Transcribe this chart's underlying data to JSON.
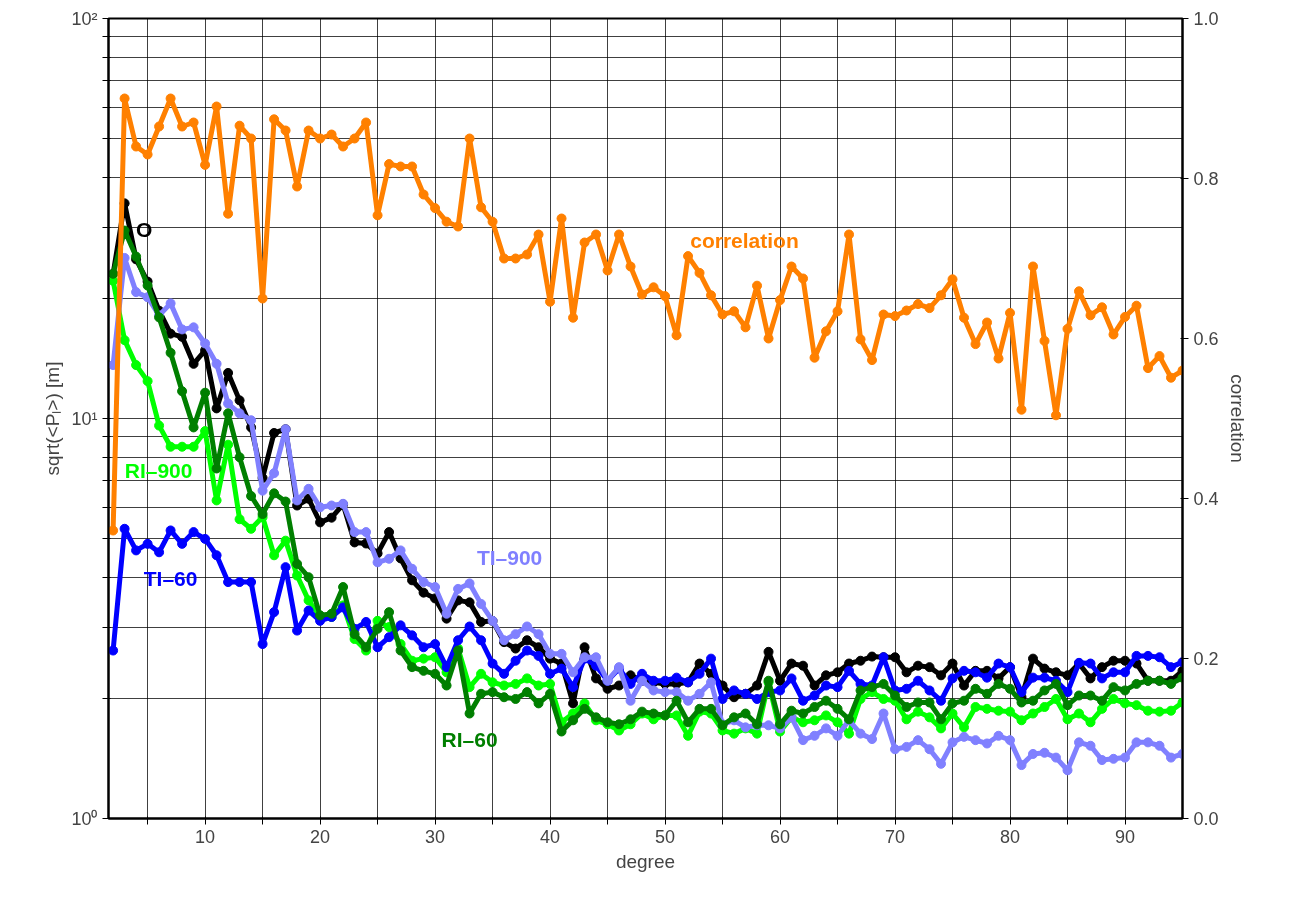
{
  "chart_data": {
    "type": "line",
    "xlabel": "degree",
    "ylabel": "sqrt(<Pₗ>) [m]",
    "y2label": "correlation",
    "x": [
      2,
      3,
      4,
      5,
      6,
      7,
      8,
      9,
      10,
      11,
      12,
      13,
      14,
      15,
      16,
      17,
      18,
      19,
      20,
      21,
      22,
      23,
      24,
      25,
      26,
      27,
      28,
      29,
      30,
      31,
      32,
      33,
      34,
      35,
      36,
      37,
      38,
      39,
      40,
      41,
      42,
      43,
      44,
      45,
      46,
      47,
      48,
      49,
      50,
      51,
      52,
      53,
      54,
      55,
      56,
      57,
      58,
      59,
      60,
      61,
      62,
      63,
      64,
      65,
      66,
      67,
      68,
      69,
      70,
      71,
      72,
      73,
      74,
      75,
      76,
      77,
      78,
      79,
      80,
      81,
      82,
      83,
      84,
      85,
      86,
      87,
      88,
      89,
      90,
      91,
      92,
      93,
      94,
      95
    ],
    "xlim": [
      1.6,
      95
    ],
    "xticks": [
      {
        "value": 5,
        "label": null
      },
      10,
      {
        "value": 15,
        "label": null
      },
      20,
      {
        "value": 25,
        "label": null
      },
      30,
      {
        "value": 35,
        "label": null
      },
      40,
      {
        "value": 45,
        "label": null
      },
      50,
      {
        "value": 55,
        "label": null
      },
      60,
      {
        "value": 65,
        "label": null
      },
      70,
      {
        "value": 75,
        "label": null
      },
      80,
      {
        "value": 85,
        "label": null
      },
      90
    ],
    "ylim": [
      1,
      100
    ],
    "yticks": [
      {
        "value": 1,
        "label": "10⁰"
      },
      {
        "value": 2,
        "label": null
      },
      {
        "value": 3,
        "label": null
      },
      {
        "value": 4,
        "label": null
      },
      {
        "value": 5,
        "label": null
      },
      {
        "value": 6,
        "label": null
      },
      {
        "value": 7,
        "label": null
      },
      {
        "value": 8,
        "label": null
      },
      {
        "value": 9,
        "label": null
      },
      {
        "value": 10,
        "label": "10¹"
      },
      {
        "value": 20,
        "label": null
      },
      {
        "value": 30,
        "label": null
      },
      {
        "value": 40,
        "label": null
      },
      {
        "value": 50,
        "label": null
      },
      {
        "value": 60,
        "label": null
      },
      {
        "value": 70,
        "label": null
      },
      {
        "value": 80,
        "label": null
      },
      {
        "value": 90,
        "label": null
      },
      {
        "value": 100,
        "label": "10²"
      }
    ],
    "y2lim": [
      0,
      1
    ],
    "y2ticks": [
      {
        "value": 0,
        "label": "0.0"
      },
      {
        "value": 0.2,
        "label": "0.2"
      },
      {
        "value": 0.4,
        "label": "0.4"
      },
      {
        "value": 0.6,
        "label": "0.6"
      },
      {
        "value": 0.8,
        "label": "0.8"
      },
      {
        "value": 1,
        "label": "1.0"
      }
    ],
    "log": "y",
    "grid": true,
    "marker": "circle",
    "line_style": "solid",
    "series": [
      {
        "color": "#000000",
        "values": [
          23.0,
          34.5,
          25,
          22,
          18.6,
          16.3,
          16,
          13.7,
          14.8,
          10.6,
          13.0,
          11.1,
          9.5,
          7.1,
          9.2,
          9.4,
          6.06,
          6.3,
          5.5,
          5.65,
          6.1,
          4.9,
          4.87,
          4.6,
          5.2,
          4.47,
          3.94,
          3.67,
          3.55,
          3.16,
          3.51,
          3.47,
          3.1,
          3.12,
          2.76,
          2.66,
          2.79,
          2.68,
          2.51,
          2.44,
          1.94,
          2.68,
          2.24,
          2.11,
          2.15,
          2.28,
          2.21,
          2.19,
          2.17,
          2.17,
          2.19,
          2.44,
          2.3,
          2.15,
          2.01,
          2.05,
          2.15,
          2.61,
          2.21,
          2.44,
          2.41,
          2.15,
          2.28,
          2.32,
          2.44,
          2.48,
          2.54,
          2.53,
          2.53,
          2.32,
          2.41,
          2.39,
          2.28,
          2.44,
          2.15,
          2.34,
          2.34,
          2.24,
          2.39,
          2.01,
          2.51,
          2.37,
          2.32,
          2.28,
          2.44,
          2.24,
          2.39,
          2.48,
          2.48,
          2.44,
          2.21,
          2.21,
          2.21,
          2.34
        ]
      },
      {
        "color": "#00ff00",
        "values": [
          22.1,
          15.7,
          13.6,
          12.4,
          9.6,
          8.5,
          8.5,
          8.5,
          9.3,
          6.24,
          8.6,
          5.6,
          5.3,
          5.67,
          4.55,
          4.95,
          4.05,
          3.51,
          3.19,
          3.19,
          3.41,
          2.81,
          2.63,
          3.12,
          3.01,
          2.73,
          2.48,
          2.51,
          2.53,
          2.32,
          2.66,
          2.13,
          2.3,
          2.19,
          2.15,
          2.17,
          2.24,
          2.15,
          2.17,
          1.74,
          1.83,
          1.94,
          1.76,
          1.72,
          1.66,
          1.72,
          1.83,
          1.77,
          1.81,
          1.81,
          1.61,
          1.85,
          1.83,
          1.66,
          1.63,
          1.68,
          1.63,
          2.19,
          1.65,
          1.79,
          1.74,
          1.76,
          1.81,
          1.74,
          1.63,
          1.99,
          2.07,
          1.99,
          1.97,
          1.77,
          1.85,
          1.79,
          1.68,
          1.83,
          1.69,
          1.9,
          1.88,
          1.86,
          1.85,
          1.76,
          1.83,
          1.9,
          1.99,
          1.77,
          1.83,
          1.74,
          1.88,
          1.99,
          1.94,
          1.92,
          1.86,
          1.85,
          1.86,
          1.95
        ]
      },
      {
        "color": "#0000ff",
        "values": [
          2.63,
          5.3,
          4.68,
          4.86,
          4.63,
          5.25,
          4.86,
          5.2,
          5.0,
          4.55,
          3.9,
          3.9,
          3.9,
          2.73,
          3.28,
          4.25,
          2.95,
          3.31,
          3.12,
          3.19,
          3.37,
          2.98,
          3.1,
          2.68,
          2.84,
          3.04,
          2.87,
          2.68,
          2.73,
          2.39,
          2.79,
          3.02,
          2.79,
          2.44,
          2.3,
          2.48,
          2.63,
          2.55,
          2.3,
          2.37,
          2.13,
          2.51,
          2.41,
          2.21,
          2.37,
          2.17,
          2.3,
          2.21,
          2.21,
          2.25,
          2.19,
          2.3,
          2.51,
          1.99,
          2.09,
          2.05,
          1.99,
          2.07,
          2.09,
          2.24,
          1.97,
          2.03,
          2.15,
          2.13,
          2.34,
          2.17,
          2.15,
          2.53,
          2.09,
          2.11,
          2.21,
          2.09,
          1.97,
          2.24,
          2.34,
          2.32,
          2.25,
          2.44,
          2.39,
          2.07,
          2.25,
          2.25,
          2.21,
          2.07,
          2.45,
          2.44,
          2.24,
          2.32,
          2.32,
          2.55,
          2.55,
          2.53,
          2.39,
          2.46
        ]
      },
      {
        "color": "#8080ff",
        "values": [
          13.6,
          25.2,
          20.7,
          20.1,
          18.1,
          19.4,
          16.7,
          16.9,
          15.4,
          13.7,
          10.9,
          10.3,
          9.9,
          6.6,
          7.3,
          9.4,
          6.24,
          6.67,
          6.0,
          6.06,
          6.12,
          5.2,
          5.2,
          4.37,
          4.46,
          4.68,
          4.21,
          3.9,
          3.79,
          3.25,
          3.75,
          3.87,
          3.44,
          3.12,
          2.79,
          2.89,
          3.02,
          2.89,
          2.58,
          2.58,
          2.32,
          2.53,
          2.53,
          2.21,
          2.39,
          1.97,
          2.21,
          2.09,
          2.07,
          2.07,
          1.97,
          2.05,
          2.19,
          1.72,
          1.76,
          1.69,
          1.71,
          1.71,
          1.68,
          1.79,
          1.57,
          1.61,
          1.68,
          1.61,
          1.76,
          1.63,
          1.58,
          1.83,
          1.49,
          1.51,
          1.57,
          1.49,
          1.37,
          1.55,
          1.6,
          1.57,
          1.54,
          1.61,
          1.57,
          1.36,
          1.45,
          1.46,
          1.42,
          1.32,
          1.55,
          1.52,
          1.4,
          1.41,
          1.42,
          1.55,
          1.55,
          1.52,
          1.42,
          1.45
        ]
      },
      {
        "color": "#007f00",
        "values": [
          23,
          29.5,
          25.4,
          21.5,
          17.9,
          14.6,
          11.7,
          9.5,
          11.6,
          7.5,
          10.3,
          8.0,
          6.4,
          5.77,
          6.5,
          6.2,
          4.33,
          4.01,
          3.22,
          3.25,
          3.79,
          2.89,
          2.68,
          2.98,
          3.28,
          2.63,
          2.39,
          2.34,
          2.3,
          2.15,
          2.63,
          1.83,
          2.05,
          2.07,
          2.01,
          1.99,
          2.07,
          1.94,
          2.05,
          1.65,
          1.76,
          1.88,
          1.79,
          1.74,
          1.72,
          1.77,
          1.85,
          1.83,
          1.81,
          1.97,
          1.74,
          1.88,
          1.88,
          1.71,
          1.79,
          1.83,
          1.72,
          2.21,
          1.72,
          1.86,
          1.83,
          1.9,
          1.97,
          1.88,
          1.77,
          2.09,
          2.13,
          2.17,
          2.03,
          1.9,
          1.95,
          1.95,
          1.77,
          1.94,
          1.97,
          2.11,
          2.05,
          2.17,
          2.11,
          1.95,
          1.97,
          2.09,
          2.17,
          1.92,
          2.03,
          2.03,
          1.97,
          2.13,
          2.09,
          2.17,
          2.21,
          2.21,
          2.17,
          2.25
        ]
      },
      {
        "color": "#ff8000",
        "axis": "y2",
        "values": [
          0.36,
          0.9,
          0.84,
          0.83,
          0.865,
          0.9,
          0.865,
          0.87,
          0.817,
          0.89,
          0.756,
          0.866,
          0.85,
          0.65,
          0.874,
          0.86,
          0.79,
          0.86,
          0.85,
          0.855,
          0.84,
          0.85,
          0.87,
          0.754,
          0.818,
          0.815,
          0.815,
          0.78,
          0.763,
          0.746,
          0.74,
          0.85,
          0.764,
          0.746,
          0.7,
          0.7,
          0.705,
          0.73,
          0.646,
          0.75,
          0.626,
          0.72,
          0.73,
          0.685,
          0.73,
          0.69,
          0.655,
          0.664,
          0.653,
          0.604,
          0.703,
          0.682,
          0.654,
          0.63,
          0.634,
          0.614,
          0.666,
          0.6,
          0.648,
          0.69,
          0.675,
          0.576,
          0.609,
          0.634,
          0.73,
          0.599,
          0.573,
          0.63,
          0.628,
          0.635,
          0.643,
          0.638,
          0.654,
          0.674,
          0.626,
          0.593,
          0.62,
          0.575,
          0.632,
          0.511,
          0.69,
          0.597,
          0.504,
          0.612,
          0.659,
          0.629,
          0.639,
          0.605,
          0.627,
          0.641,
          0.563,
          0.578,
          0.551,
          0.56
        ]
      }
    ],
    "annotations": [
      {
        "text": "O",
        "x": 4,
        "y": 25
      },
      {
        "text": "RI–900",
        "x": 7,
        "y": 8.5
      },
      {
        "text": "TI–60",
        "x": 7,
        "y": 5.25
      },
      {
        "text": "TI–900",
        "x": 33,
        "y": 3.87
      },
      {
        "text": "RI–60",
        "x": 33,
        "y": 1.83
      },
      "correlation"
    ]
  }
}
